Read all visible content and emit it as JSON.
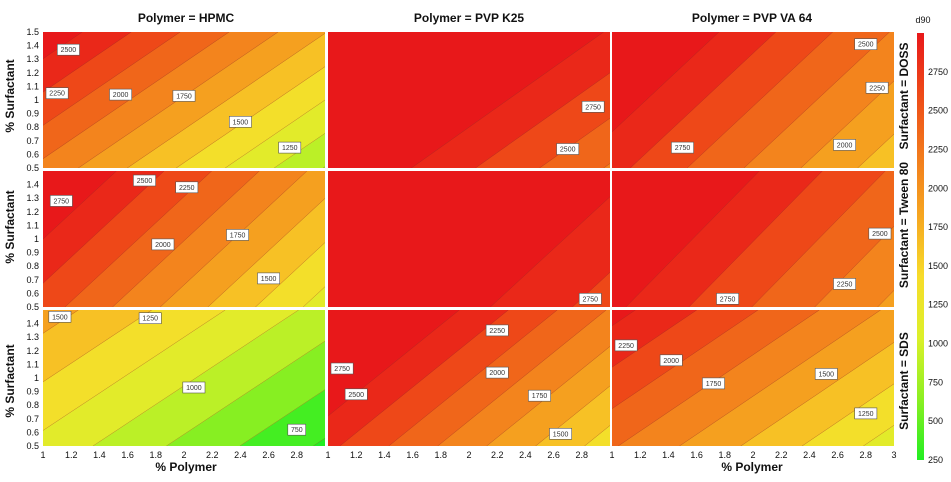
{
  "chart_data": {
    "type": "heatmap",
    "subtype": "contour-facet-grid",
    "col_headers": [
      "Polymer = HPMC",
      "Polymer = PVP K25",
      "Polymer = PVP VA 64"
    ],
    "row_headers": [
      "Surfactant = DOSS",
      "Surfactant = Tween 80",
      "Surfactant = SDS"
    ],
    "xlabel": "% Polymer",
    "ylabel": "% Surfactant",
    "x_ticks": [
      "1",
      "1.2",
      "1.4",
      "1.6",
      "1.8",
      "2",
      "2.2",
      "2.4",
      "2.6",
      "2.8",
      "3"
    ],
    "x_tick_last_col_only": [
      "3"
    ],
    "y_ticks": [
      "0.5",
      "0.6",
      "0.7",
      "0.8",
      "0.9",
      "1",
      "1.1",
      "1.2",
      "1.3",
      "1.4",
      "1.5"
    ],
    "y_ticks_rows_2_3": [
      "0.5",
      "0.6",
      "0.7",
      "0.8",
      "0.9",
      "1",
      "1.1",
      "1.2",
      "1.3",
      "1.4"
    ],
    "xlim": [
      1,
      3
    ],
    "ylim": [
      0.5,
      1.5
    ],
    "colorbar": {
      "title": "d90",
      "range": [
        250,
        3000
      ],
      "ticks": [
        "250",
        "500",
        "750",
        "1000",
        "1250",
        "1500",
        "1750",
        "2000",
        "2250",
        "2500",
        "2750"
      ],
      "tick_values": [
        250,
        500,
        750,
        1000,
        1250,
        1500,
        1750,
        2000,
        2250,
        2500,
        2750
      ],
      "colors": [
        "#22ee22",
        "#8cef22",
        "#dcf02a",
        "#f7dc2a",
        "#f6a620",
        "#f27a1c",
        "#ee4a18",
        "#e8181a"
      ]
    },
    "contour_levels": [
      250,
      500,
      750,
      1000,
      1250,
      1500,
      1750,
      2000,
      2250,
      2500,
      2750,
      3000
    ],
    "panels": [
      {
        "row": 0,
        "col": 0,
        "plane": {
          "a": 2390,
          "bx": -720,
          "by": 1020
        },
        "labels": [
          {
            "text": "2500",
            "x": 1.18,
            "y": 1.37
          },
          {
            "text": "2250",
            "x": 1.1,
            "y": 1.05
          },
          {
            "text": "2000",
            "x": 1.55,
            "y": 1.04
          },
          {
            "text": "1750",
            "x": 2.0,
            "y": 1.03
          },
          {
            "text": "1500",
            "x": 2.4,
            "y": 0.84
          },
          {
            "text": "1250",
            "x": 2.75,
            "y": 0.65
          }
        ]
      },
      {
        "row": 0,
        "col": 1,
        "plane": {
          "a": 3500,
          "bx": -550,
          "by": 750
        },
        "labels": [
          {
            "text": "2750",
            "x": 2.88,
            "y": 0.95
          },
          {
            "text": "2500",
            "x": 2.7,
            "y": 0.64
          }
        ]
      },
      {
        "row": 0,
        "col": 2,
        "plane": {
          "a": 3130,
          "bx": -620,
          "by": 640
        },
        "labels": [
          {
            "text": "2750",
            "x": 1.5,
            "y": 0.65
          },
          {
            "text": "2500",
            "x": 2.8,
            "y": 1.41
          },
          {
            "text": "2250",
            "x": 2.88,
            "y": 1.09
          },
          {
            "text": "2000",
            "x": 2.65,
            "y": 0.67
          }
        ]
      },
      {
        "row": 1,
        "col": 0,
        "plane": {
          "a": 2970,
          "bx": -740,
          "by": 770
        },
        "labels": [
          {
            "text": "2750",
            "x": 1.13,
            "y": 1.28
          },
          {
            "text": "2500",
            "x": 1.72,
            "y": 1.43
          },
          {
            "text": "2250",
            "x": 2.02,
            "y": 1.38
          },
          {
            "text": "2000",
            "x": 1.85,
            "y": 0.96
          },
          {
            "text": "1750",
            "x": 2.38,
            "y": 1.03
          },
          {
            "text": "1500",
            "x": 2.6,
            "y": 0.71
          }
        ]
      },
      {
        "row": 1,
        "col": 1,
        "plane": {
          "a": 3700,
          "bx": -430,
          "by": 450
        },
        "labels": [
          {
            "text": "2750",
            "x": 2.86,
            "y": 0.56
          }
        ]
      },
      {
        "row": 1,
        "col": 2,
        "plane": {
          "a": 3350,
          "bx": -560,
          "by": 530
        },
        "labels": [
          {
            "text": "2750",
            "x": 1.82,
            "y": 0.56
          },
          {
            "text": "2500",
            "x": 2.9,
            "y": 1.04
          },
          {
            "text": "2250",
            "x": 2.65,
            "y": 0.67
          }
        ]
      },
      {
        "row": 2,
        "col": 0,
        "plane": {
          "a": 1300,
          "bx": -480,
          "by": 700
        },
        "labels": [
          {
            "text": "1500",
            "x": 1.12,
            "y": 1.45
          },
          {
            "text": "1250",
            "x": 1.76,
            "y": 1.44
          },
          {
            "text": "1000",
            "x": 2.07,
            "y": 0.93
          },
          {
            "text": "750",
            "x": 2.8,
            "y": 0.62
          }
        ]
      },
      {
        "row": 2,
        "col": 1,
        "plane": {
          "a": 3100,
          "bx": -720,
          "by": 860
        },
        "labels": [
          {
            "text": "2750",
            "x": 1.1,
            "y": 1.07
          },
          {
            "text": "2500",
            "x": 1.2,
            "y": 0.88
          },
          {
            "text": "2250",
            "x": 2.2,
            "y": 1.35
          },
          {
            "text": "2000",
            "x": 2.2,
            "y": 1.04
          },
          {
            "text": "1750",
            "x": 2.5,
            "y": 0.87
          },
          {
            "text": "1500",
            "x": 2.65,
            "y": 0.59
          }
        ]
      },
      {
        "row": 2,
        "col": 2,
        "plane": {
          "a": 2440,
          "bx": -575,
          "by": 820
        },
        "labels": [
          {
            "text": "2250",
            "x": 1.1,
            "y": 1.24
          },
          {
            "text": "2000",
            "x": 1.42,
            "y": 1.13
          },
          {
            "text": "1750",
            "x": 1.72,
            "y": 0.96
          },
          {
            "text": "1500",
            "x": 2.52,
            "y": 1.03
          },
          {
            "text": "1250",
            "x": 2.8,
            "y": 0.74
          }
        ]
      }
    ]
  }
}
